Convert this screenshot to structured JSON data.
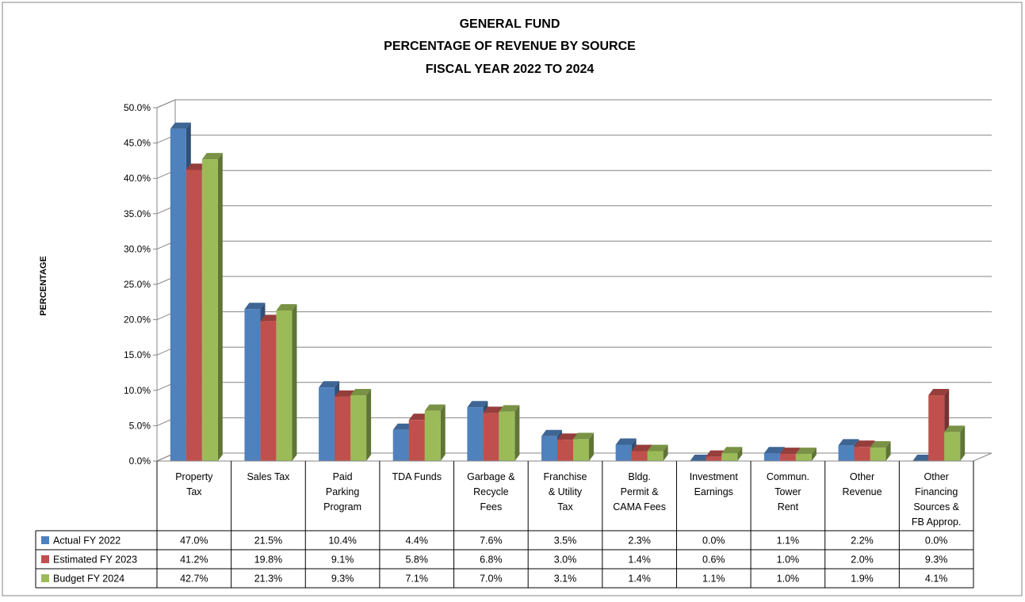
{
  "chart_data": {
    "type": "bar",
    "title": [
      "GENERAL FUND",
      "PERCENTAGE OF REVENUE BY SOURCE",
      "FISCAL YEAR 2022 TO 2024"
    ],
    "ylabel": "PERCENTAGE",
    "ylim": [
      0,
      50
    ],
    "yticks": [
      "0.0%",
      "5.0%",
      "10.0%",
      "15.0%",
      "20.0%",
      "25.0%",
      "30.0%",
      "35.0%",
      "40.0%",
      "45.0%",
      "50.0%"
    ],
    "ytick_values": [
      0,
      5,
      10,
      15,
      20,
      25,
      30,
      35,
      40,
      45,
      50
    ],
    "grid": true,
    "legend": "data-table",
    "categories": [
      [
        "Property",
        "Tax"
      ],
      [
        "Sales Tax"
      ],
      [
        "Paid",
        "Parking",
        "Program"
      ],
      [
        "TDA Funds"
      ],
      [
        "Garbage &",
        "Recycle",
        "Fees"
      ],
      [
        "Franchise",
        "& Utility",
        "Tax"
      ],
      [
        "Bldg.",
        "Permit &",
        "CAMA Fees"
      ],
      [
        "Investment",
        "Earnings"
      ],
      [
        "Commun.",
        "Tower",
        "Rent"
      ],
      [
        "Other",
        "Revenue"
      ],
      [
        "Other",
        "Financing",
        "Sources &",
        "FB Approp."
      ]
    ],
    "series": [
      {
        "name": "Actual FY 2022",
        "color": "#4F81BD",
        "values": [
          47.0,
          21.5,
          10.4,
          4.4,
          7.6,
          3.5,
          2.3,
          0.0,
          1.1,
          2.2,
          0.0
        ],
        "labels": [
          "47.0%",
          "21.5%",
          "10.4%",
          "4.4%",
          "7.6%",
          "3.5%",
          "2.3%",
          "0.0%",
          "1.1%",
          "2.2%",
          "0.0%"
        ]
      },
      {
        "name": "Estimated FY 2023",
        "color": "#C0504D",
        "values": [
          41.2,
          19.8,
          9.1,
          5.8,
          6.8,
          3.0,
          1.4,
          0.6,
          1.0,
          2.0,
          9.3
        ],
        "labels": [
          "41.2%",
          "19.8%",
          "9.1%",
          "5.8%",
          "6.8%",
          "3.0%",
          "1.4%",
          "0.6%",
          "1.0%",
          "2.0%",
          "9.3%"
        ]
      },
      {
        "name": "Budget FY 2024",
        "color": "#9BBB59",
        "values": [
          42.7,
          21.3,
          9.3,
          7.1,
          7.0,
          3.1,
          1.4,
          1.1,
          1.0,
          1.9,
          4.1
        ],
        "labels": [
          "42.7%",
          "21.3%",
          "9.3%",
          "7.1%",
          "7.0%",
          "3.1%",
          "1.4%",
          "1.1%",
          "1.0%",
          "1.9%",
          "4.1%"
        ]
      }
    ]
  }
}
